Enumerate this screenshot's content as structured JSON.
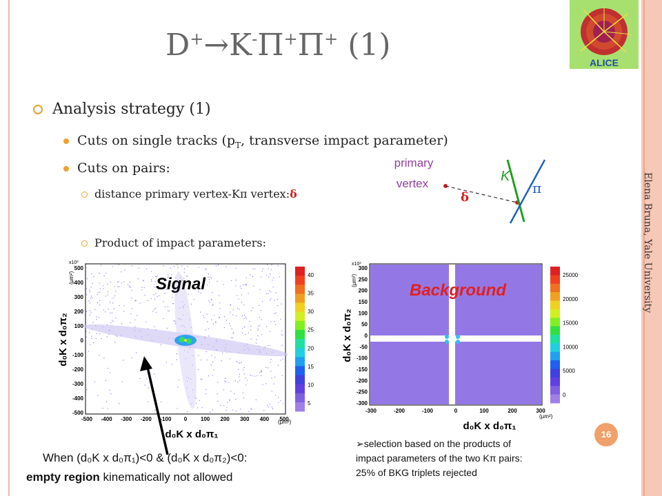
{
  "author": "Elena Bruna, Yale University",
  "logo_text": "ALICE",
  "title": {
    "d": "D",
    "sup1": "+",
    "arrow": "→",
    "k": "K",
    "sup2": "-",
    "pi1": "Π",
    "sup3": "+",
    "pi2": "Π",
    "sup4": "+",
    "num": " (1)"
  },
  "bullets": {
    "l1": "Analysis strategy (1)",
    "l2a_pre": "Cuts on single tracks (p",
    "l2a_sub": "T",
    "l2a_post": ", transverse impact parameter)",
    "l2b": "Cuts on pairs:",
    "l3a": "distance primary vertex-Kπ vertex:",
    "l3a_sym": "δ",
    "l3b": "Product of impact parameters:"
  },
  "diagram": {
    "primary": "primary",
    "vertex": "vertex",
    "k": "K",
    "pi": "π",
    "delta": "δ"
  },
  "signal_plot": {
    "label": "Signal",
    "xlabel": "d₀K x d₀π₁",
    "ylabel": "d₀K x d₀π₂",
    "yunit": "(μm²)",
    "xunit": "(μm²)",
    "exp": "x10³",
    "xticks": [
      "-500",
      "-400",
      "-300",
      "-200",
      "-100",
      "0",
      "100",
      "200",
      "300",
      "400",
      "500"
    ],
    "yticks": [
      "500",
      "400",
      "300",
      "200",
      "100",
      "0",
      "-100",
      "-200",
      "-300",
      "-400",
      "-500"
    ],
    "zticks": [
      "40",
      "35",
      "30",
      "25",
      "20",
      "15",
      "10",
      "5"
    ]
  },
  "background_plot": {
    "label": "Background",
    "xlabel": "d₀K x d₀π₁",
    "ylabel": "d₀K x d₀π₂",
    "yunit": "(μm²)",
    "xunit": "(μm²)",
    "exp": "x10³",
    "xticks": [
      "-300",
      "-200",
      "-100",
      "0",
      "100",
      "200",
      "300"
    ],
    "yticks": [
      "300",
      "250",
      "200",
      "150",
      "100",
      "50",
      "0",
      "-50",
      "-100",
      "-150",
      "-200",
      "-250",
      "-300"
    ],
    "zticks": [
      "25000",
      "20000",
      "15000",
      "10000",
      "5000",
      "0"
    ]
  },
  "captions": {
    "bottom_left_1": "When (d₀K x d₀π₁)<0 & (d₀K x d₀π₂)<0:",
    "bottom_left_2_bold": "empty region",
    "bottom_left_2_rest": " kinematically not allowed",
    "bottom_right_1": "selection based on the products of",
    "bottom_right_2": "impact parameters of the two Kπ pairs:",
    "bottom_right_3": "25% of BKG triplets rejected",
    "arrow_marker": "➢"
  },
  "page_number": "16",
  "colors": {
    "side_band": "#f6c8b8",
    "bullet_accent": "#e8a030",
    "highlight_red": "#d02020",
    "diagram_purple": "#9040a0",
    "k_track": "#20a020",
    "pi_track": "#2060c0"
  }
}
